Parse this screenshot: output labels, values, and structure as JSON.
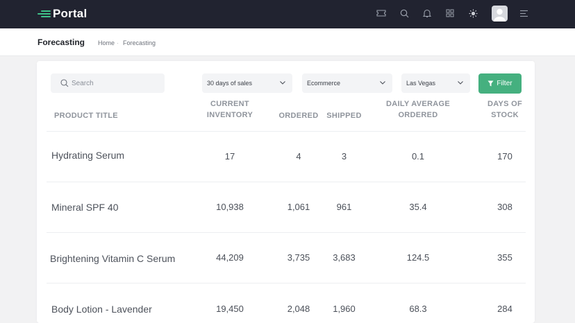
{
  "app": {
    "name": "Portal"
  },
  "header": {
    "page_title": "Forecasting",
    "breadcrumb": [
      "Home",
      "Forecasting"
    ]
  },
  "toolbar": {
    "search_placeholder": "Search",
    "period": "30 days of sales",
    "channel": "Ecommerce",
    "location": "Las Vegas",
    "filter_label": "Filter"
  },
  "table": {
    "columns": {
      "product_title": "PRODUCT TITLE",
      "current_inventory": "CURRENT\nINVENTORY",
      "ordered": "ORDERED",
      "shipped": "SHIPPED",
      "daily_average": "DAILY AVERAGE\nORDERED",
      "days_of_stock": "DAYS OF\nSTOCK"
    },
    "rows": [
      {
        "name": "Hydrating Serum",
        "inventory": "17",
        "ordered": "4",
        "shipped": "3",
        "daily_avg": "0.1",
        "days": "170"
      },
      {
        "name": "Mineral SPF 40",
        "inventory": "10,938",
        "ordered": "1,061",
        "shipped": "961",
        "daily_avg": "35.4",
        "days": "308"
      },
      {
        "name": "Brightening Vitamin C Serum",
        "inventory": "44,209",
        "ordered": "3,735",
        "shipped": "3,683",
        "daily_avg": "124.5",
        "days": "355"
      },
      {
        "name": "Body Lotion - Lavender",
        "inventory": "19,450",
        "ordered": "2,048",
        "shipped": "1,960",
        "daily_avg": "68.3",
        "days": "284"
      }
    ]
  },
  "icons": [
    "ticket-icon",
    "search-icon",
    "bell-icon",
    "grid-icon",
    "sun-icon",
    "avatar",
    "menu-icon",
    "chevron-down-icon",
    "funnel-icon"
  ],
  "colors": {
    "topbar": "#212330",
    "accent": "#45b07f",
    "logo_mark": "#3fc38a"
  }
}
